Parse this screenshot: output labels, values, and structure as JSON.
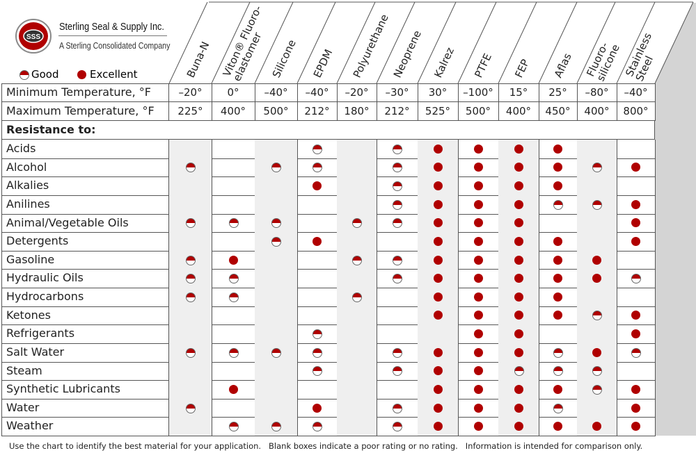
{
  "company": {
    "name": "Sterling Seal & Supply Inc.",
    "tagline": "A Sterling Consolidated Company",
    "logo_text": "SSS"
  },
  "legend": {
    "good": "Good",
    "excellent": "Excellent"
  },
  "colors": {
    "dot": "#b00000",
    "shade": "#efefef"
  },
  "chart_data": {
    "type": "table",
    "columns": [
      [
        "Buna-N"
      ],
      [
        "Viton® Fluoro-",
        "elastomer"
      ],
      [
        "Silicone"
      ],
      [
        "EPDM"
      ],
      [
        "Polyurethane"
      ],
      [
        "Neoprene"
      ],
      [
        "Kalrez"
      ],
      [
        "PTFE"
      ],
      [
        "FEP"
      ],
      [
        "Aflas"
      ],
      [
        "Fluoro-",
        "silicone"
      ],
      [
        "Stainless",
        "Steel"
      ]
    ],
    "temperature_rows": [
      {
        "label": "Minimum Temperature, °F",
        "values": [
          "–20°",
          "0°",
          "–40°",
          "–40°",
          "–20°",
          "–30°",
          "30°",
          "–100°",
          "15°",
          "25°",
          "–80°",
          "–40°"
        ]
      },
      {
        "label": "Maximum Temperature, °F",
        "values": [
          "225°",
          "400°",
          "500°",
          "212°",
          "180°",
          "212°",
          "525°",
          "500°",
          "400°",
          "450°",
          "400°",
          "800°"
        ]
      }
    ],
    "section_label": "Resistance to:",
    "rating_key": {
      "G": "Good",
      "E": "Excellent",
      "": "poor or no rating"
    },
    "rows": [
      {
        "label": "Acids",
        "ratings": [
          "",
          "",
          "",
          "G",
          "",
          "G",
          "E",
          "E",
          "E",
          "E",
          "",
          ""
        ]
      },
      {
        "label": "Alcohol",
        "ratings": [
          "G",
          "",
          "G",
          "G",
          "",
          "G",
          "E",
          "E",
          "E",
          "E",
          "G",
          "E"
        ]
      },
      {
        "label": "Alkalies",
        "ratings": [
          "",
          "",
          "",
          "E",
          "",
          "G",
          "E",
          "E",
          "E",
          "E",
          "",
          ""
        ]
      },
      {
        "label": "Anilines",
        "ratings": [
          "",
          "",
          "",
          "",
          "",
          "G",
          "E",
          "E",
          "E",
          "G",
          "G",
          "E"
        ]
      },
      {
        "label": "Animal/Vegetable Oils",
        "ratings": [
          "G",
          "G",
          "G",
          "",
          "G",
          "G",
          "E",
          "E",
          "E",
          "",
          "",
          "E"
        ]
      },
      {
        "label": "Detergents",
        "ratings": [
          "",
          "",
          "G",
          "E",
          "",
          "",
          "E",
          "E",
          "E",
          "E",
          "",
          "E"
        ]
      },
      {
        "label": "Gasoline",
        "ratings": [
          "G",
          "E",
          "",
          "",
          "G",
          "G",
          "E",
          "E",
          "E",
          "E",
          "E",
          ""
        ]
      },
      {
        "label": "Hydraulic Oils",
        "ratings": [
          "G",
          "G",
          "",
          "",
          "",
          "G",
          "E",
          "E",
          "E",
          "E",
          "E",
          "G"
        ]
      },
      {
        "label": "Hydrocarbons",
        "ratings": [
          "G",
          "G",
          "",
          "",
          "G",
          "",
          "E",
          "E",
          "E",
          "E",
          "",
          ""
        ]
      },
      {
        "label": "Ketones",
        "ratings": [
          "",
          "",
          "",
          "",
          "",
          "",
          "E",
          "E",
          "E",
          "E",
          "G",
          "E"
        ]
      },
      {
        "label": "Refrigerants",
        "ratings": [
          "",
          "",
          "",
          "G",
          "",
          "",
          "",
          "E",
          "E",
          "",
          "",
          "E"
        ]
      },
      {
        "label": "Salt Water",
        "ratings": [
          "G",
          "G",
          "G",
          "G",
          "",
          "G",
          "E",
          "E",
          "E",
          "G",
          "E",
          "G"
        ]
      },
      {
        "label": "Steam",
        "ratings": [
          "",
          "",
          "",
          "G",
          "",
          "G",
          "E",
          "E",
          "G",
          "G",
          "G",
          ""
        ]
      },
      {
        "label": "Synthetic Lubricants",
        "ratings": [
          "",
          "E",
          "",
          "",
          "",
          "",
          "E",
          "E",
          "E",
          "E",
          "G",
          "E"
        ]
      },
      {
        "label": "Water",
        "ratings": [
          "G",
          "",
          "",
          "E",
          "",
          "G",
          "E",
          "E",
          "E",
          "G",
          "",
          "E"
        ]
      },
      {
        "label": "Weather",
        "ratings": [
          "",
          "G",
          "G",
          "G",
          "",
          "G",
          "E",
          "E",
          "E",
          "E",
          "E",
          "E"
        ]
      }
    ]
  },
  "footer": "Use the chart to identify the best material for your application.   Blank boxes indicate a poor rating or no rating.   Information is intended for comparison only."
}
